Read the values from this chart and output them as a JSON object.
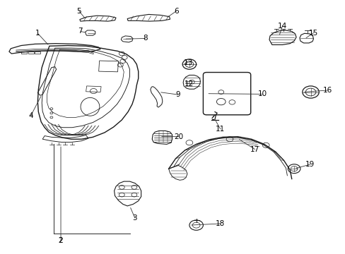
{
  "background_color": "#ffffff",
  "line_color": "#1a1a1a",
  "fig_width": 4.89,
  "fig_height": 3.6,
  "dpi": 100,
  "label_positions": {
    "1": [
      0.108,
      0.825,
      0.108,
      0.87
    ],
    "2": [
      0.175,
      0.088,
      0.175,
      0.052
    ],
    "3": [
      0.39,
      0.175,
      0.39,
      0.14
    ],
    "4": [
      0.118,
      0.52,
      0.088,
      0.54
    ],
    "5": [
      0.248,
      0.93,
      0.228,
      0.955
    ],
    "6": [
      0.478,
      0.93,
      0.51,
      0.955
    ],
    "7": [
      0.258,
      0.862,
      0.232,
      0.875
    ],
    "8": [
      0.388,
      0.838,
      0.42,
      0.848
    ],
    "9": [
      0.478,
      0.618,
      0.515,
      0.625
    ],
    "10": [
      0.715,
      0.628,
      0.758,
      0.628
    ],
    "11": [
      0.638,
      0.53,
      0.638,
      0.495
    ],
    "12": [
      0.58,
      0.665,
      0.548,
      0.668
    ],
    "13": [
      0.578,
      0.748,
      0.545,
      0.752
    ],
    "14": [
      0.81,
      0.858,
      0.818,
      0.898
    ],
    "15": [
      0.892,
      0.838,
      0.908,
      0.868
    ],
    "16": [
      0.918,
      0.638,
      0.948,
      0.642
    ],
    "17": [
      0.718,
      0.428,
      0.738,
      0.408
    ],
    "18": [
      0.598,
      0.115,
      0.638,
      0.115
    ],
    "19": [
      0.868,
      0.335,
      0.898,
      0.348
    ],
    "20": [
      0.488,
      0.455,
      0.518,
      0.458
    ]
  }
}
